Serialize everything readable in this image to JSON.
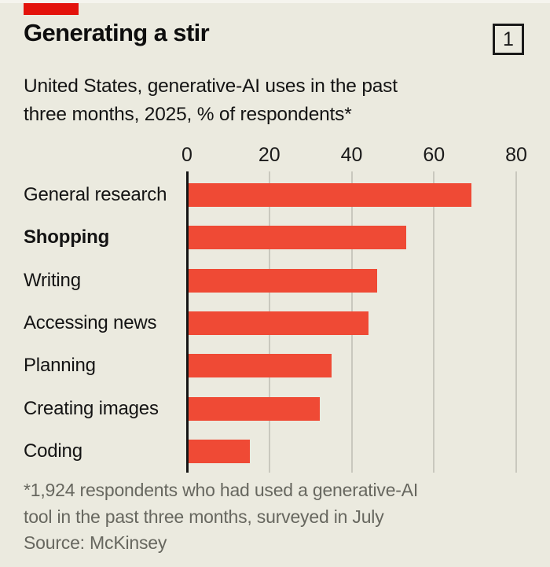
{
  "header": {
    "title": "Generating a stir",
    "panel_number": "1",
    "subtitle_line1": "United States, generative-AI uses in the past",
    "subtitle_line2": "three months, 2025, % of respondents*"
  },
  "chart_data": {
    "type": "bar",
    "orientation": "horizontal",
    "title": "Generating a stir",
    "subtitle": "United States, generative-AI uses in the past three months, 2025, % of respondents*",
    "categories": [
      "General research",
      "Shopping",
      "Writing",
      "Accessing news",
      "Planning",
      "Creating images",
      "Coding"
    ],
    "values": [
      69,
      53,
      46,
      44,
      35,
      32,
      15
    ],
    "bold_categories": [
      "Shopping"
    ],
    "x_ticks": [
      0,
      20,
      40,
      60,
      80
    ],
    "xlim": [
      0,
      80
    ],
    "xlabel": "",
    "ylabel": "",
    "grid": true,
    "legend_position": "none",
    "bar_color": "#EF4A35"
  },
  "footnote": {
    "line1": "*1,924 respondents who had used a generative-AI",
    "line2": "tool in the past three months, surveyed in July",
    "source": "Source: McKinsey"
  },
  "colors": {
    "background": "#EBEADF",
    "tag_red": "#E3120B",
    "bar_red": "#EF4A35",
    "gridline": "#C9C8BE",
    "axis": "#151515",
    "footnote_text": "#67675F"
  }
}
